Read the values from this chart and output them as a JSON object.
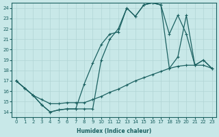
{
  "xlabel": "Humidex (Indice chaleur)",
  "ylabel": "",
  "background_color": "#c8e8e8",
  "grid_color": "#b0d4d4",
  "line_color": "#1a6060",
  "xlim": [
    -0.5,
    23.5
  ],
  "ylim": [
    13.5,
    24.5
  ],
  "xticks": [
    0,
    1,
    2,
    3,
    4,
    5,
    6,
    7,
    8,
    9,
    10,
    11,
    12,
    13,
    14,
    15,
    16,
    17,
    18,
    19,
    20,
    21,
    22,
    23
  ],
  "yticks": [
    14,
    15,
    16,
    17,
    18,
    19,
    20,
    21,
    22,
    23,
    24
  ],
  "series1_x": [
    0,
    1,
    2,
    3,
    4,
    5,
    6,
    7,
    8,
    9,
    10,
    11,
    12,
    13,
    14,
    15,
    16,
    17,
    18,
    19,
    20,
    21,
    22,
    23
  ],
  "series1_y": [
    17.0,
    16.3,
    15.6,
    14.7,
    14.0,
    14.2,
    14.3,
    14.3,
    14.3,
    14.3,
    19.0,
    21.0,
    22.0,
    24.0,
    23.2,
    24.3,
    24.5,
    24.3,
    21.5,
    23.3,
    21.5,
    18.5,
    19.0,
    18.2
  ],
  "series2_x": [
    0,
    1,
    2,
    3,
    4,
    5,
    6,
    7,
    8,
    9,
    10,
    11,
    12,
    13,
    14,
    15,
    16,
    17,
    18,
    19,
    20,
    21,
    22,
    23
  ],
  "series2_y": [
    17.0,
    16.3,
    15.6,
    14.7,
    14.0,
    14.2,
    14.3,
    14.3,
    16.7,
    18.7,
    20.5,
    21.5,
    21.7,
    24.0,
    23.2,
    24.3,
    24.5,
    24.3,
    18.2,
    19.3,
    23.3,
    18.5,
    19.0,
    18.2
  ],
  "series3_x": [
    0,
    1,
    2,
    3,
    4,
    5,
    6,
    7,
    8,
    9,
    10,
    11,
    12,
    13,
    14,
    15,
    16,
    17,
    18,
    19,
    20,
    21,
    22,
    23
  ],
  "series3_y": [
    17.0,
    16.3,
    15.6,
    15.2,
    14.8,
    14.8,
    14.9,
    14.9,
    14.9,
    15.2,
    15.5,
    15.9,
    16.2,
    16.6,
    17.0,
    17.3,
    17.6,
    17.9,
    18.2,
    18.4,
    18.5,
    18.5,
    18.5,
    18.2
  ]
}
